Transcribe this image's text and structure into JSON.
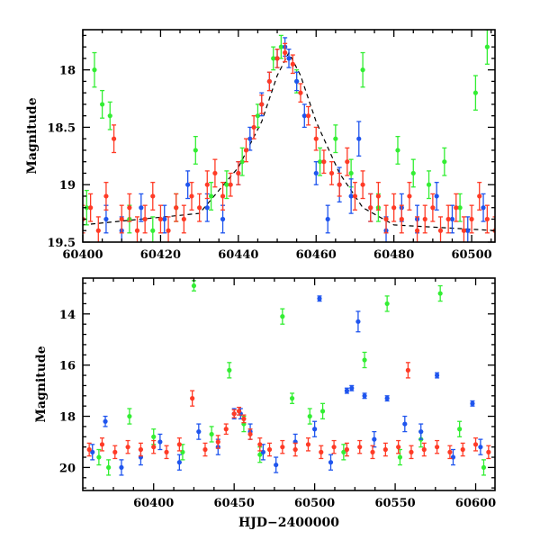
{
  "colors": {
    "green": "#33ee33",
    "blue": "#1f55ee",
    "red": "#ff3b26",
    "model": "#000000"
  },
  "chart_data": [
    {
      "type": "scatter",
      "xlabel": "",
      "ylabel": "Magnitude",
      "xlim": [
        60400,
        60506
      ],
      "ylim": [
        19.5,
        17.65
      ],
      "y_inverted": true,
      "xticks": [
        60400,
        60420,
        60440,
        60460,
        60480,
        60500
      ],
      "yticks": [
        18,
        18.5,
        19,
        19.5
      ],
      "xtick_labels": [
        "60400",
        "60420",
        "60440",
        "60460",
        "60480",
        "60500"
      ],
      "ytick_labels": [
        "18",
        "18.5",
        "19",
        "19.5"
      ],
      "model_curve": {
        "x": [
          60400,
          60430,
          60440,
          60446,
          60450,
          60453,
          60456,
          60460,
          60466,
          60472,
          60480,
          60506
        ],
        "y": [
          19.35,
          19.25,
          18.85,
          18.45,
          18.05,
          17.85,
          18.05,
          18.45,
          18.9,
          19.2,
          19.35,
          19.4
        ]
      },
      "series": [
        {
          "color": "#33ee33",
          "x": [
            60401,
            60403,
            60405,
            60407,
            60412,
            60418,
            60424,
            60429,
            60433,
            60437,
            60441,
            60445,
            60449,
            60451,
            60455,
            60461,
            60465,
            60469,
            60472,
            60476,
            60481,
            60485,
            60489,
            60493,
            60497,
            60501,
            60504
          ],
          "y": [
            19.2,
            18.0,
            18.3,
            18.4,
            19.3,
            19.4,
            19.2,
            18.7,
            19.1,
            19.0,
            18.8,
            18.4,
            17.9,
            17.8,
            18.1,
            18.8,
            18.6,
            18.9,
            18.0,
            19.2,
            18.7,
            18.9,
            19.0,
            18.8,
            19.2,
            18.2,
            17.8
          ],
          "err": [
            0.15,
            0.15,
            0.12,
            0.12,
            0.12,
            0.12,
            0.12,
            0.12,
            0.12,
            0.12,
            0.12,
            0.1,
            0.1,
            0.1,
            0.1,
            0.12,
            0.12,
            0.12,
            0.15,
            0.12,
            0.12,
            0.12,
            0.12,
            0.12,
            0.12,
            0.15,
            0.15
          ]
        },
        {
          "color": "#1f55ee",
          "x": [
            60406,
            60410,
            60415,
            60421,
            60427,
            60432,
            60436,
            60440,
            60443,
            60446,
            60448,
            60450,
            60452,
            60453,
            60455,
            60457,
            60460,
            60463,
            60466,
            60469,
            60471,
            60474,
            60478,
            60482,
            60486,
            60491,
            60495,
            60499,
            60503
          ],
          "y": [
            19.3,
            19.4,
            19.2,
            19.3,
            19.0,
            19.2,
            19.3,
            18.9,
            18.6,
            18.3,
            18.1,
            17.9,
            17.8,
            17.9,
            18.1,
            18.4,
            18.9,
            19.3,
            19.0,
            19.1,
            18.6,
            19.2,
            19.4,
            19.2,
            19.3,
            19.1,
            19.3,
            19.4,
            19.2
          ],
          "err": [
            0.12,
            0.12,
            0.12,
            0.12,
            0.12,
            0.12,
            0.12,
            0.1,
            0.1,
            0.1,
            0.08,
            0.08,
            0.08,
            0.08,
            0.08,
            0.1,
            0.1,
            0.12,
            0.15,
            0.15,
            0.15,
            0.12,
            0.12,
            0.12,
            0.12,
            0.12,
            0.12,
            0.12,
            0.12
          ]
        },
        {
          "color": "#ff3b26",
          "x": [
            60400,
            60402,
            60404,
            60406,
            60408,
            60410,
            60412,
            60414,
            60416,
            60418,
            60420,
            60422,
            60424,
            60426,
            60428,
            60430,
            60432,
            60434,
            60436,
            60438,
            60440,
            60442,
            60444,
            60446,
            60448,
            60450,
            60452,
            60454,
            60456,
            60458,
            60460,
            60462,
            60464,
            60466,
            60468,
            60470,
            60472,
            60474,
            60476,
            60478,
            60480,
            60482,
            60484,
            60486,
            60488,
            60490,
            60492,
            60494,
            60496,
            60498,
            60500,
            60502,
            60504,
            60506
          ],
          "y": [
            19.3,
            19.2,
            19.4,
            19.1,
            18.6,
            19.3,
            19.2,
            19.4,
            19.3,
            19.1,
            19.3,
            19.4,
            19.2,
            19.3,
            19.1,
            19.2,
            19.0,
            18.9,
            19.1,
            19.0,
            18.9,
            18.7,
            18.5,
            18.3,
            18.1,
            17.9,
            17.85,
            17.95,
            18.2,
            18.4,
            18.6,
            18.8,
            18.9,
            19.0,
            18.8,
            19.1,
            19.0,
            19.2,
            19.1,
            19.3,
            19.2,
            19.3,
            19.1,
            19.4,
            19.3,
            19.2,
            19.4,
            19.3,
            19.2,
            19.4,
            19.3,
            19.1,
            19.3,
            19.4
          ],
          "err": [
            0.12,
            0.12,
            0.12,
            0.12,
            0.12,
            0.12,
            0.12,
            0.12,
            0.12,
            0.12,
            0.12,
            0.12,
            0.12,
            0.12,
            0.12,
            0.12,
            0.12,
            0.12,
            0.12,
            0.1,
            0.1,
            0.1,
            0.1,
            0.08,
            0.08,
            0.08,
            0.08,
            0.08,
            0.08,
            0.08,
            0.1,
            0.1,
            0.1,
            0.1,
            0.12,
            0.12,
            0.12,
            0.12,
            0.12,
            0.12,
            0.12,
            0.12,
            0.12,
            0.12,
            0.12,
            0.12,
            0.12,
            0.12,
            0.12,
            0.12,
            0.12,
            0.12,
            0.12,
            0.12
          ]
        }
      ]
    },
    {
      "type": "scatter",
      "xlabel": "HJD−2400000",
      "ylabel": "Magnitude",
      "xlim": [
        60356,
        60612
      ],
      "ylim": [
        20.9,
        12.6
      ],
      "y_inverted": true,
      "xticks": [
        60400,
        60450,
        60500,
        60550,
        60600
      ],
      "yticks": [
        14,
        16,
        18,
        20
      ],
      "xtick_labels": [
        "60400",
        "60450",
        "60500",
        "60550",
        "60600"
      ],
      "ytick_labels": [
        "14",
        "16",
        "18",
        "20"
      ],
      "series": [
        {
          "color": "#33ee33",
          "x": [
            60366,
            60372,
            60385,
            60400,
            60418,
            60425,
            60436,
            60447,
            60456,
            60466,
            60480,
            60486,
            60497,
            60505,
            60518,
            60531,
            60545,
            60553,
            60566,
            60578,
            60590,
            60605
          ],
          "y": [
            19.6,
            20.0,
            18.0,
            18.8,
            19.4,
            12.9,
            18.7,
            16.2,
            18.3,
            19.5,
            14.1,
            17.3,
            18.0,
            17.8,
            19.4,
            15.8,
            13.6,
            19.6,
            18.9,
            13.2,
            18.5,
            20.0
          ],
          "err": [
            0.3,
            0.3,
            0.3,
            0.3,
            0.3,
            0.2,
            0.3,
            0.3,
            0.3,
            0.3,
            0.3,
            0.2,
            0.3,
            0.3,
            0.3,
            0.3,
            0.3,
            0.3,
            0.3,
            0.3,
            0.3,
            0.3
          ]
        },
        {
          "color": "#1f55ee",
          "x": [
            60362,
            60370,
            60380,
            60392,
            60404,
            60416,
            60428,
            60440,
            60450,
            60454,
            60460,
            60468,
            60476,
            60488,
            60500,
            60503,
            60510,
            60520,
            60523,
            60527,
            60531,
            60537,
            60545,
            60556,
            60566,
            60576,
            60586,
            60598,
            60603
          ],
          "y": [
            19.4,
            18.2,
            20.0,
            19.6,
            19.0,
            19.8,
            18.6,
            19.2,
            17.9,
            17.9,
            18.6,
            19.4,
            19.9,
            19.0,
            18.5,
            13.4,
            19.8,
            17.0,
            16.9,
            14.3,
            17.2,
            18.9,
            17.3,
            18.3,
            18.6,
            16.4,
            19.6,
            17.5,
            19.2
          ],
          "err": [
            0.3,
            0.2,
            0.3,
            0.3,
            0.3,
            0.3,
            0.3,
            0.3,
            0.2,
            0.2,
            0.3,
            0.3,
            0.3,
            0.3,
            0.3,
            0.1,
            0.3,
            0.1,
            0.1,
            0.4,
            0.1,
            0.3,
            0.1,
            0.3,
            0.3,
            0.1,
            0.3,
            0.1,
            0.3
          ]
        },
        {
          "color": "#ff3b26",
          "x": [
            60360,
            60368,
            60376,
            60384,
            60392,
            60400,
            60408,
            60416,
            60424,
            60432,
            60440,
            60445,
            60450,
            60453,
            60456,
            60460,
            60466,
            60472,
            60480,
            60488,
            60496,
            60504,
            60512,
            60520,
            60528,
            60536,
            60544,
            60552,
            60558,
            60560,
            60568,
            60576,
            60584,
            60592,
            60600,
            60608
          ],
          "y": [
            19.3,
            19.1,
            19.4,
            19.2,
            19.3,
            19.2,
            19.4,
            19.1,
            17.3,
            19.3,
            19.0,
            18.5,
            17.9,
            17.8,
            18.1,
            18.7,
            19.1,
            19.3,
            19.2,
            19.3,
            19.1,
            19.4,
            19.2,
            19.3,
            19.2,
            19.4,
            19.3,
            19.2,
            16.2,
            19.4,
            19.3,
            19.2,
            19.4,
            19.3,
            19.1,
            19.4
          ],
          "err": [
            0.25,
            0.25,
            0.25,
            0.25,
            0.25,
            0.25,
            0.25,
            0.25,
            0.3,
            0.25,
            0.25,
            0.2,
            0.15,
            0.15,
            0.15,
            0.2,
            0.25,
            0.25,
            0.25,
            0.25,
            0.25,
            0.25,
            0.25,
            0.25,
            0.25,
            0.25,
            0.25,
            0.25,
            0.3,
            0.25,
            0.25,
            0.25,
            0.25,
            0.25,
            0.25,
            0.25
          ]
        }
      ]
    }
  ]
}
